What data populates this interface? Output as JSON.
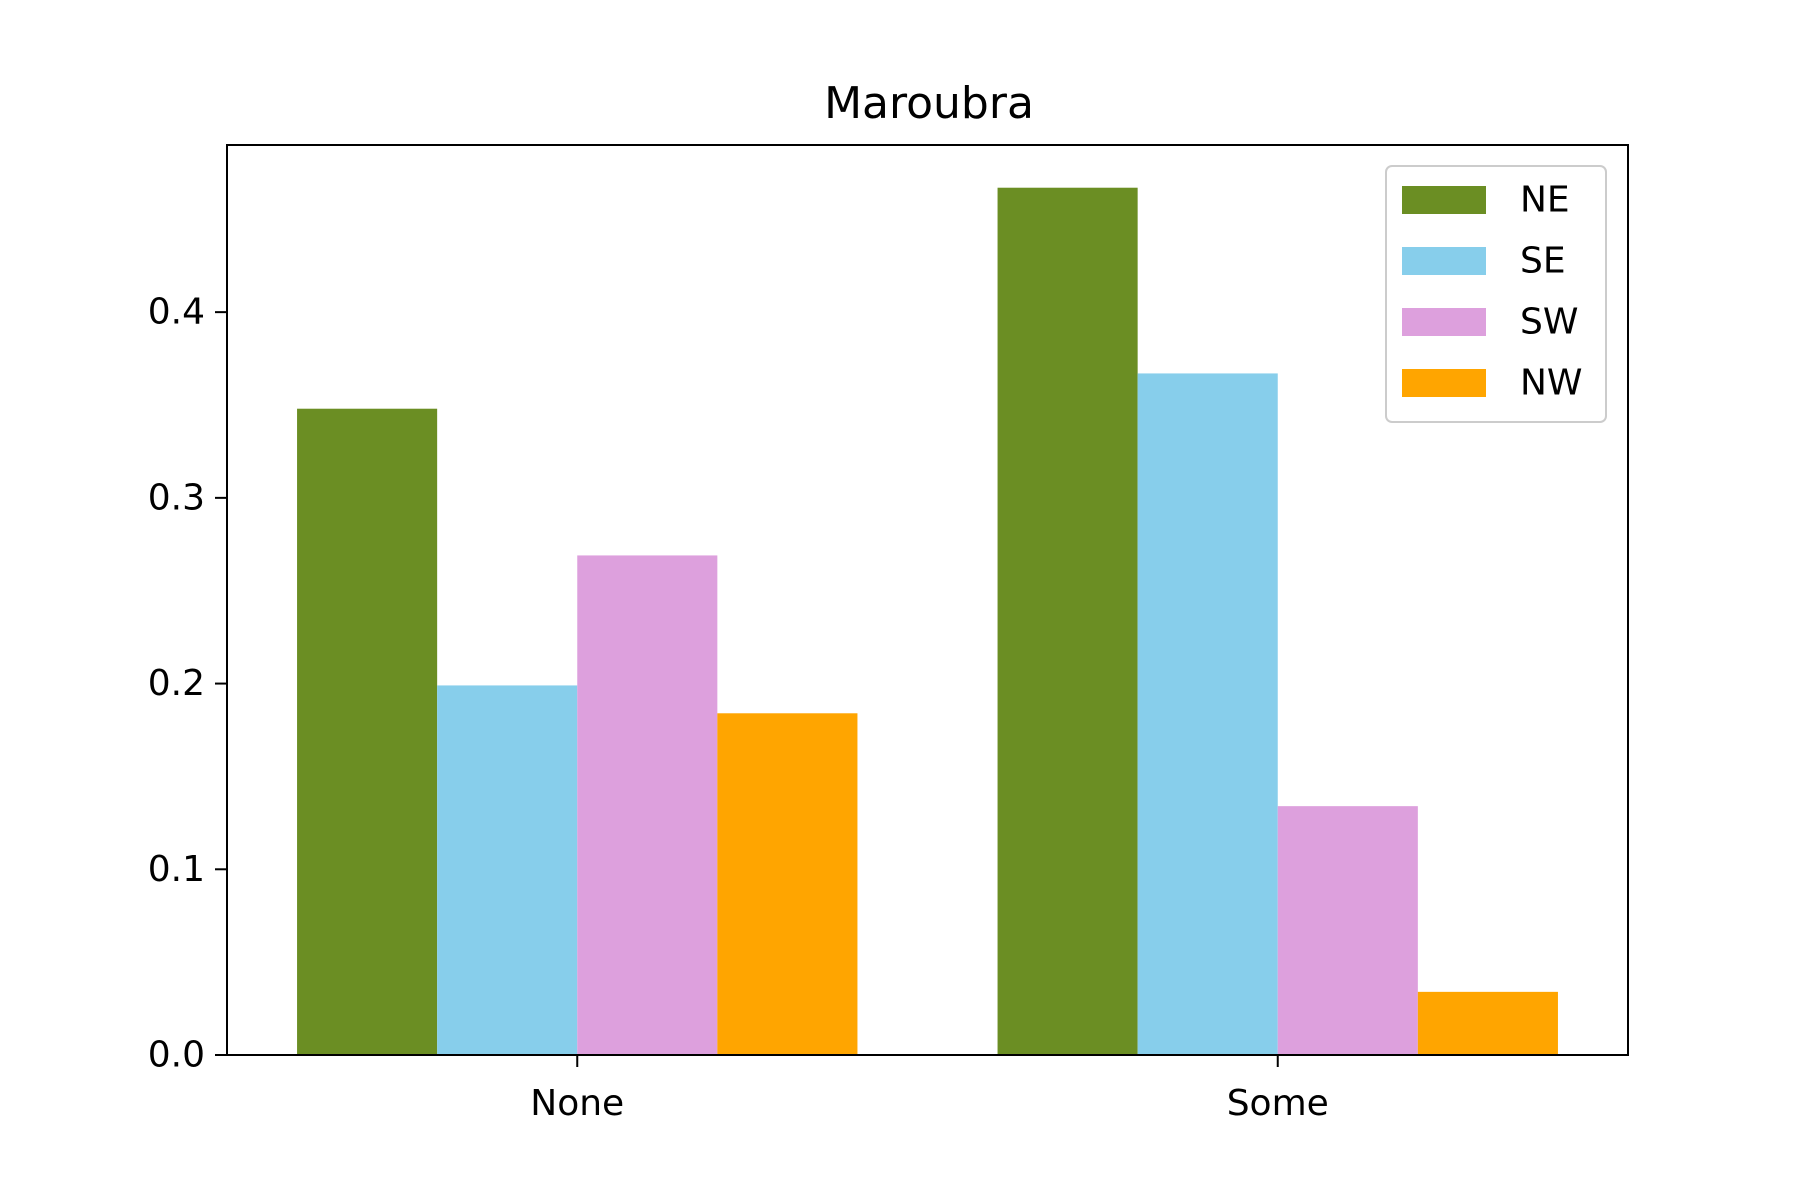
{
  "chart_data": {
    "type": "bar",
    "title": "Maroubra",
    "xlabel": "",
    "ylabel": "",
    "categories": [
      "None",
      "Some"
    ],
    "series": [
      {
        "name": "NE",
        "color": "#6b8e23",
        "values": [
          0.348,
          0.467
        ]
      },
      {
        "name": "SE",
        "color": "#87ceeb",
        "values": [
          0.199,
          0.367
        ]
      },
      {
        "name": "SW",
        "color": "#dda0dd",
        "values": [
          0.269,
          0.134
        ]
      },
      {
        "name": "NW",
        "color": "#ffa500",
        "values": [
          0.184,
          0.034
        ]
      }
    ],
    "ylim": [
      0,
      0.49
    ],
    "yticks": [
      0.0,
      0.1,
      0.2,
      0.3,
      0.4
    ],
    "ytick_labels": [
      "0.0",
      "0.1",
      "0.2",
      "0.3",
      "0.4"
    ],
    "grid": false,
    "legend_position": "top-right"
  }
}
